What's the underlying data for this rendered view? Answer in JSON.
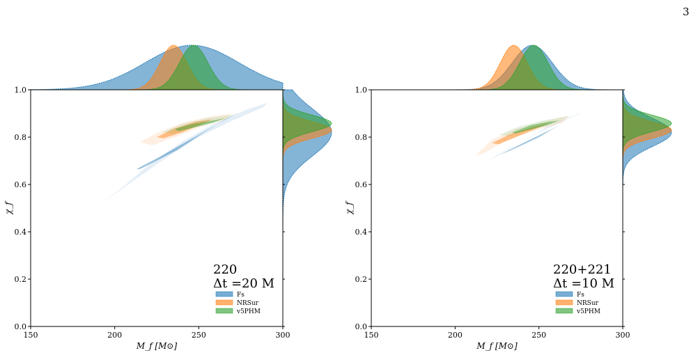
{
  "page_number": "3",
  "colors": {
    "Fs": "#1f77b4",
    "NRSur": "#ff7f0e",
    "v5PHM": "#2ca02c"
  },
  "chart_data": [
    {
      "type": "scatter",
      "subtype": "2d-posterior-contours-with-marginals",
      "xlabel": "M_f [M⊙]",
      "ylabel": "χ_f",
      "xlim": [
        150,
        300
      ],
      "ylim": [
        0.0,
        1.0
      ],
      "xticks": [
        "150",
        "200",
        "250",
        "300"
      ],
      "yticks": [
        "0.0",
        "0.2",
        "0.4",
        "0.6",
        "0.8",
        "1.0"
      ],
      "annotation_line1": "220",
      "annotation_line2": "Δt =20 M",
      "legend_placement": "lower-right",
      "series": [
        {
          "name": "Fs",
          "color": "#1f77b4",
          "contours": [
            {
              "level": 0.9,
              "points": [
                [
                  192,
                  0.52
                ],
                [
                  205,
                  0.59
                ],
                [
                  220,
                  0.68
                ],
                [
                  240,
                  0.78
                ],
                [
                  260,
                  0.86
                ],
                [
                  280,
                  0.92
                ],
                [
                  291,
                  0.945
                ],
                [
                  288,
                  0.925
                ],
                [
                  270,
                  0.87
                ],
                [
                  250,
                  0.8
                ],
                [
                  230,
                  0.71
                ],
                [
                  212,
                  0.62
                ],
                [
                  198,
                  0.55
                ]
              ]
            },
            {
              "level": 0.5,
              "points": [
                [
                  213,
                  0.665
                ],
                [
                  225,
                  0.71
                ],
                [
                  240,
                  0.77
                ],
                [
                  255,
                  0.83
                ],
                [
                  270,
                  0.89
                ],
                [
                  274,
                  0.905
                ],
                [
                  268,
                  0.885
                ],
                [
                  252,
                  0.815
                ],
                [
                  237,
                  0.745
                ],
                [
                  222,
                  0.69
                ],
                [
                  215,
                  0.665
                ]
              ]
            }
          ],
          "marginal_x": {
            "mean": 246,
            "sd": 28
          },
          "marginal_y": {
            "mean": 0.82,
            "sd": 0.1
          }
        },
        {
          "name": "NRSur",
          "color": "#ff7f0e",
          "contours": [
            {
              "level": 0.9,
              "points": [
                [
                  215,
                  0.78
                ],
                [
                  226,
                  0.82
                ],
                [
                  240,
                  0.86
                ],
                [
                  255,
                  0.885
                ],
                [
                  270,
                  0.9
                ],
                [
                  266,
                  0.875
                ],
                [
                  250,
                  0.84
                ],
                [
                  236,
                  0.8
                ],
                [
                  222,
                  0.765
                ]
              ]
            },
            {
              "level": 0.5,
              "points": [
                [
                  225,
                  0.8
                ],
                [
                  235,
                  0.835
                ],
                [
                  248,
                  0.865
                ],
                [
                  258,
                  0.875
                ],
                [
                  252,
                  0.855
                ],
                [
                  240,
                  0.82
                ],
                [
                  229,
                  0.795
                ]
              ]
            }
          ],
          "marginal_x": {
            "mean": 235,
            "sd": 8
          },
          "marginal_y": {
            "mean": 0.83,
            "sd": 0.035
          }
        },
        {
          "name": "v5PHM",
          "color": "#2ca02c",
          "contours": [
            {
              "level": 0.9,
              "points": [
                [
                  228,
                  0.82
                ],
                [
                  240,
                  0.855
                ],
                [
                  255,
                  0.88
                ],
                [
                  270,
                  0.895
                ],
                [
                  265,
                  0.875
                ],
                [
                  250,
                  0.85
                ],
                [
                  235,
                  0.815
                ]
              ]
            },
            {
              "level": 0.5,
              "points": [
                [
                  236,
                  0.835
                ],
                [
                  246,
                  0.855
                ],
                [
                  258,
                  0.87
                ],
                [
                  266,
                  0.88
                ],
                [
                  258,
                  0.86
                ],
                [
                  247,
                  0.84
                ],
                [
                  238,
                  0.825
                ]
              ]
            }
          ],
          "marginal_x": {
            "mean": 247,
            "sd": 8.5
          },
          "marginal_y": {
            "mean": 0.858,
            "sd": 0.035
          }
        }
      ]
    },
    {
      "type": "scatter",
      "subtype": "2d-posterior-contours-with-marginals",
      "xlabel": "M_f [M⊙]",
      "ylabel": "χ_f",
      "xlim": [
        150,
        300
      ],
      "ylim": [
        0.0,
        1.0
      ],
      "xticks": [
        "150",
        "200",
        "250",
        "300"
      ],
      "yticks": [
        "0.0",
        "0.2",
        "0.4",
        "0.6",
        "0.8",
        "1.0"
      ],
      "annotation_line1": "220+221",
      "annotation_line2": "Δt =10 M",
      "legend_placement": "lower-right",
      "series": [
        {
          "name": "Fs",
          "color": "#1f77b4",
          "contours": [
            {
              "level": 0.9,
              "points": [
                [
                  214,
                  0.67
                ],
                [
                  225,
                  0.725
                ],
                [
                  240,
                  0.78
                ],
                [
                  255,
                  0.845
                ],
                [
                  270,
                  0.89
                ],
                [
                  276,
                  0.905
                ],
                [
                  268,
                  0.88
                ],
                [
                  250,
                  0.82
                ],
                [
                  235,
                  0.76
                ],
                [
                  220,
                  0.7
                ]
              ]
            },
            {
              "level": 0.5,
              "points": [
                [
                  227,
                  0.725
                ],
                [
                  238,
                  0.76
                ],
                [
                  250,
                  0.8
                ],
                [
                  262,
                  0.85
                ],
                [
                  266,
                  0.865
                ],
                [
                  258,
                  0.835
                ],
                [
                  245,
                  0.79
                ],
                [
                  232,
                  0.745
                ]
              ]
            }
          ],
          "marginal_x": {
            "mean": 246,
            "sd": 12
          },
          "marginal_y": {
            "mean": 0.82,
            "sd": 0.06
          }
        },
        {
          "name": "NRSur",
          "color": "#ff7f0e",
          "contours": [
            {
              "level": 0.9,
              "points": [
                [
                  212,
                  0.72
                ],
                [
                  222,
                  0.79
                ],
                [
                  236,
                  0.835
                ],
                [
                  252,
                  0.865
                ],
                [
                  268,
                  0.89
                ],
                [
                  264,
                  0.86
                ],
                [
                  246,
                  0.825
                ],
                [
                  230,
                  0.785
                ],
                [
                  218,
                  0.735
                ]
              ]
            },
            {
              "level": 0.5,
              "points": [
                [
                  222,
                  0.775
                ],
                [
                  232,
                  0.81
                ],
                [
                  245,
                  0.84
                ],
                [
                  256,
                  0.86
                ],
                [
                  250,
                  0.84
                ],
                [
                  238,
                  0.805
                ],
                [
                  226,
                  0.77
                ]
              ]
            }
          ],
          "marginal_x": {
            "mean": 235,
            "sd": 8
          },
          "marginal_y": {
            "mean": 0.83,
            "sd": 0.035
          }
        },
        {
          "name": "v5PHM",
          "color": "#2ca02c",
          "contours": [
            {
              "level": 0.9,
              "points": [
                [
                  226,
                  0.81
                ],
                [
                  238,
                  0.845
                ],
                [
                  252,
                  0.87
                ],
                [
                  268,
                  0.89
                ],
                [
                  262,
                  0.865
                ],
                [
                  248,
                  0.84
                ],
                [
                  232,
                  0.805
                ]
              ]
            },
            {
              "level": 0.5,
              "points": [
                [
                  234,
                  0.82
                ],
                [
                  245,
                  0.85
                ],
                [
                  256,
                  0.865
                ],
                [
                  262,
                  0.87
                ],
                [
                  255,
                  0.85
                ],
                [
                  244,
                  0.83
                ],
                [
                  236,
                  0.815
                ]
              ]
            }
          ],
          "marginal_x": {
            "mean": 247,
            "sd": 8.5
          },
          "marginal_y": {
            "mean": 0.858,
            "sd": 0.035
          }
        }
      ]
    }
  ]
}
